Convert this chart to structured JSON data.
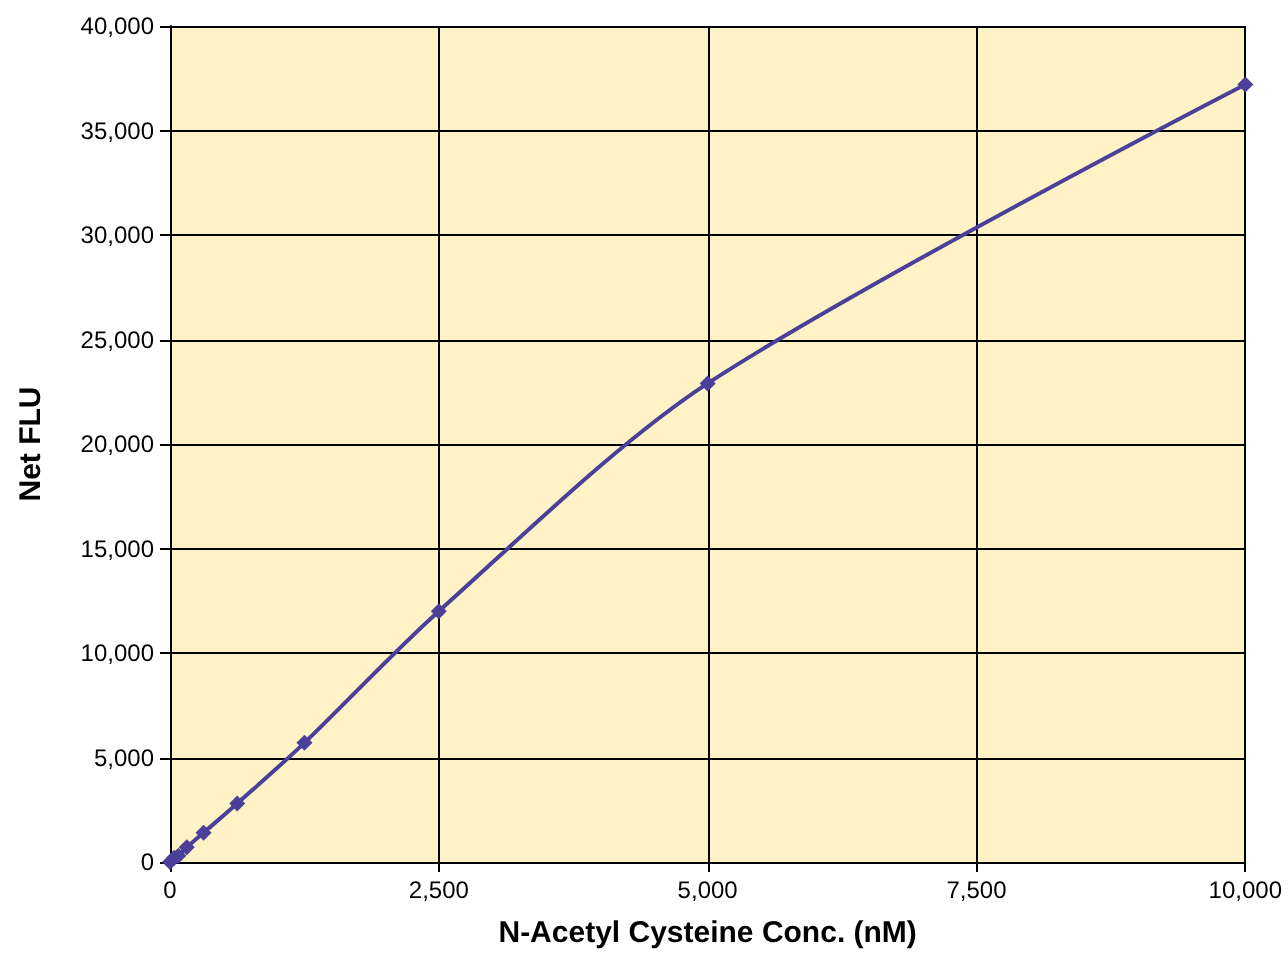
{
  "chart_data": {
    "type": "line",
    "xlabel": "N-Acetyl Cysteine Conc. (nM)",
    "ylabel": "Net FLU",
    "x": [
      0,
      39,
      78,
      156,
      312,
      625,
      1250,
      2500,
      5000,
      10000
    ],
    "series": [
      {
        "color": "#4b3f9a",
        "values": [
          0,
          200,
          300,
          700,
          1400,
          2800,
          5700,
          12000,
          22900,
          37200
        ]
      }
    ],
    "xlim": [
      0,
      10000
    ],
    "xticks": [
      0,
      {
        "value": 2500,
        "label": "2,500"
      },
      {
        "value": 5000,
        "label": "5,000"
      },
      {
        "value": 7500,
        "label": "7,500"
      },
      {
        "value": 10000,
        "label": "10,000"
      }
    ],
    "ylim": [
      0,
      40000
    ],
    "yticks": [
      0,
      {
        "value": 5000,
        "label": "5,000"
      },
      {
        "value": 10000,
        "label": "10,000"
      },
      {
        "value": 15000,
        "label": "15,000"
      },
      {
        "value": 20000,
        "label": "20,000"
      },
      {
        "value": 25000,
        "label": "25,000"
      },
      {
        "value": 30000,
        "label": "30,000"
      },
      {
        "value": 35000,
        "label": "35,000"
      },
      {
        "value": 40000,
        "label": "40,000"
      }
    ],
    "grid": true,
    "marker": "diamond",
    "line_style": "solid"
  }
}
